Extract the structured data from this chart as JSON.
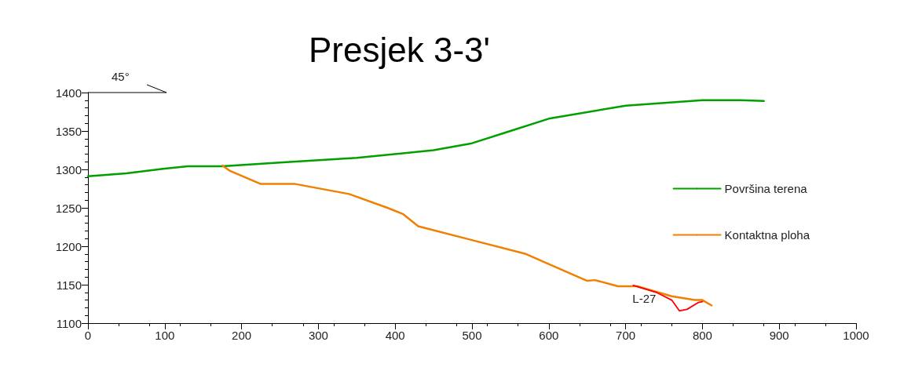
{
  "chart_data": {
    "type": "line",
    "title": "Presjek 3-3'",
    "annotations": [
      "45°"
    ],
    "xlim": [
      0,
      1000
    ],
    "xticks": [
      0,
      100,
      200,
      300,
      400,
      500,
      600,
      700,
      800,
      900,
      1000
    ],
    "ylim": [
      1100,
      1400
    ],
    "yticks": [
      1100,
      1150,
      1200,
      1250,
      1300,
      1350,
      1400
    ],
    "grid": false,
    "legend": "right",
    "marker": "none",
    "line_style": "solid",
    "series": [
      {
        "name": "Površina terena",
        "color": "#00a000",
        "x": [
          0,
          50,
          100,
          130,
          175,
          250,
          350,
          450,
          500,
          550,
          600,
          700,
          800,
          850,
          880
        ],
        "values": [
          1291,
          1295,
          1301,
          1304,
          1304,
          1309,
          1315,
          1325,
          1334,
          1350,
          1366,
          1383,
          1390,
          1390,
          1389
        ]
      },
      {
        "name": "Kontaktna ploha",
        "color": "#f08000",
        "x": [
          175,
          185,
          225,
          270,
          340,
          390,
          410,
          430,
          500,
          570,
          650,
          660,
          690,
          715,
          760,
          790,
          800,
          812
        ],
        "values": [
          1305,
          1298,
          1281,
          1281,
          1268,
          1250,
          1242,
          1226,
          1208,
          1190,
          1155,
          1156,
          1148,
          1148,
          1135,
          1130,
          1130,
          1123
        ]
      },
      {
        "name": "L-27",
        "color": "#ff0000",
        "x": [
          710,
          740,
          760,
          770,
          780,
          795,
          800
        ],
        "values": [
          1149,
          1140,
          1130,
          1116,
          1118,
          1127,
          1128
        ]
      }
    ]
  }
}
